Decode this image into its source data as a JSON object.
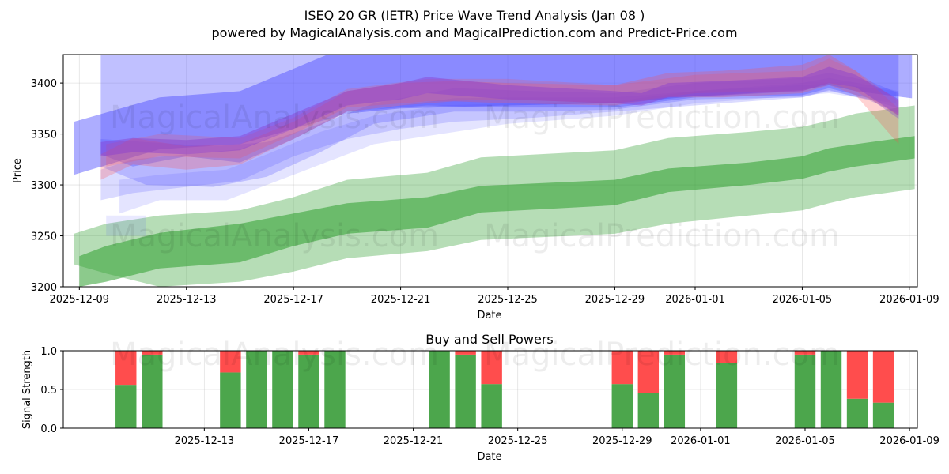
{
  "header": {
    "title": "ISEQ 20 GR (IETR) Price Wave Trend Analysis (Jan 08 )",
    "subtitle": "powered by MagicalAnalysis.com and MagicalPrediction.com and Predict-Price.com"
  },
  "watermarks": [
    "MagicalAnalysis.com",
    "MagicalPrediction.com"
  ],
  "colors": {
    "green": "#2e9e2e",
    "blue": "#4a4aff",
    "red": "#ff4d4d",
    "buy": "#4ca64c",
    "sell": "#ff4d4d",
    "purple": "#8a3fd0"
  },
  "chart_data": [
    {
      "type": "area",
      "title": "",
      "xlabel": "Date",
      "ylabel": "Price",
      "xlim": [
        -0.6,
        31.3
      ],
      "ylim": [
        3200,
        3428
      ],
      "x_origin_date": "2025-12-09",
      "x_ticks": [
        {
          "x": 0,
          "label": "2025-12-09"
        },
        {
          "x": 4,
          "label": "2025-12-13"
        },
        {
          "x": 8,
          "label": "2025-12-17"
        },
        {
          "x": 12,
          "label": "2025-12-21"
        },
        {
          "x": 16,
          "label": "2025-12-25"
        },
        {
          "x": 20,
          "label": "2025-12-29"
        },
        {
          "x": 23,
          "label": "2026-01-01"
        },
        {
          "x": 27,
          "label": "2026-01-05"
        },
        {
          "x": 31,
          "label": "2026-01-09"
        }
      ],
      "y_ticks": [
        3200,
        3250,
        3300,
        3350,
        3400
      ],
      "grid": true,
      "green_bands": [
        {
          "opacity": 0.35,
          "x": [
            -0.2,
            1,
            3,
            6,
            8,
            10,
            13,
            15,
            20,
            22,
            25,
            27,
            28,
            29,
            31.2
          ],
          "lower": [
            3222,
            3213,
            3200,
            3205,
            3215,
            3228,
            3235,
            3246,
            3252,
            3262,
            3270,
            3275,
            3282,
            3288,
            3296
          ],
          "upper": [
            3252,
            3262,
            3270,
            3275,
            3288,
            3305,
            3312,
            3327,
            3334,
            3346,
            3352,
            3357,
            3363,
            3370,
            3378
          ]
        },
        {
          "opacity": 0.55,
          "x": [
            0,
            1,
            3,
            6,
            8,
            10,
            13,
            15,
            20,
            22,
            25,
            27,
            28,
            29,
            31.2
          ],
          "lower": [
            3200,
            3205,
            3218,
            3224,
            3240,
            3252,
            3258,
            3273,
            3280,
            3293,
            3300,
            3306,
            3313,
            3318,
            3326
          ],
          "upper": [
            3230,
            3240,
            3253,
            3262,
            3272,
            3282,
            3288,
            3299,
            3305,
            3316,
            3322,
            3328,
            3336,
            3340,
            3348
          ]
        }
      ],
      "blue_bands": [
        {
          "opacity": 0.45,
          "x": [
            -0.2,
            3,
            6,
            10,
            12,
            16,
            20,
            23,
            27,
            28,
            29,
            31.1
          ],
          "lower": [
            3310,
            3335,
            3340,
            3370,
            3375,
            3378,
            3380,
            3387,
            3393,
            3398,
            3392,
            3385
          ],
          "upper": [
            3362,
            3386,
            3392,
            3436,
            3440,
            3440,
            3438,
            3440,
            3445,
            3450,
            3445,
            3430
          ]
        },
        {
          "opacity": 0.35,
          "x": [
            0.8,
            2,
            4,
            6,
            8,
            10,
            13,
            16,
            20,
            23,
            27,
            28,
            29.5,
            30.6
          ],
          "lower": [
            3330,
            3318,
            3328,
            3322,
            3345,
            3372,
            3378,
            3376,
            3376,
            3386,
            3388,
            3395,
            3385,
            3365
          ]
        },
        {
          "opacity": 0.25,
          "x": [
            0.8,
            2.5,
            5,
            7,
            9,
            11,
            14,
            17,
            20,
            23,
            27,
            28,
            29.5,
            30.6
          ],
          "lower": [
            3318,
            3300,
            3298,
            3308,
            3332,
            3360,
            3372,
            3372,
            3374,
            3384,
            3386,
            3393,
            3383,
            3370
          ],
          "upper": [
            3345,
            3342,
            3338,
            3342,
            3360,
            3380,
            3395,
            3392,
            3390,
            3400,
            3405,
            3410,
            3402,
            3390
          ]
        },
        {
          "opacity": 0.2,
          "x": [
            0.8,
            2,
            4,
            6,
            8,
            10,
            12,
            14,
            17,
            20,
            24,
            27,
            28,
            29.5,
            30.6
          ],
          "lower": [
            3285,
            3292,
            3298,
            3304,
            3328,
            3345,
            3355,
            3362,
            3366,
            3372,
            3380,
            3386,
            3392,
            3384,
            3375
          ],
          "upper": [
            3315,
            3325,
            3330,
            3335,
            3355,
            3370,
            3378,
            3385,
            3386,
            3386,
            3394,
            3400,
            3405,
            3398,
            3392
          ]
        },
        {
          "opacity": 0.15,
          "x": [
            1.5,
            3,
            5.5,
            7,
            9,
            11,
            13.5,
            16,
            20,
            23,
            27,
            28,
            30.5
          ],
          "lower": [
            3272,
            3285,
            3285,
            3300,
            3320,
            3340,
            3350,
            3360,
            3368,
            3380,
            3388,
            3390,
            3380
          ],
          "upper": [
            3305,
            3310,
            3315,
            3330,
            3352,
            3368,
            3378,
            3380,
            3382,
            3392,
            3398,
            3400,
            3392
          ]
        },
        {
          "opacity": 0.12,
          "x": [
            1,
            2.5
          ],
          "lower": [
            3250,
            3250
          ],
          "upper": [
            3270,
            3270
          ]
        }
      ],
      "red_bands": [
        {
          "opacity": 0.25,
          "x": [
            0.8,
            2,
            4,
            6,
            8,
            10,
            12,
            14,
            16,
            20,
            22,
            24,
            27,
            28,
            29,
            30.6
          ],
          "lower": [
            3305,
            3320,
            3315,
            3320,
            3345,
            3372,
            3378,
            3382,
            3380,
            3378,
            3386,
            3386,
            3390,
            3398,
            3388,
            3340
          ],
          "upper": [
            3330,
            3346,
            3338,
            3340,
            3362,
            3392,
            3400,
            3402,
            3400,
            3398,
            3410,
            3412,
            3418,
            3428,
            3412,
            3375
          ]
        },
        {
          "opacity": 0.2,
          "x": [
            1,
            3,
            6,
            8,
            10,
            13,
            16,
            20,
            23,
            27,
            28,
            29,
            30.6
          ],
          "lower": [
            3318,
            3328,
            3326,
            3350,
            3376,
            3382,
            3384,
            3380,
            3390,
            3392,
            3400,
            3392,
            3368
          ],
          "upper": [
            3340,
            3350,
            3346,
            3366,
            3394,
            3404,
            3404,
            3398,
            3408,
            3412,
            3424,
            3412,
            3382
          ]
        }
      ],
      "purple_band": {
        "x": [
          0.8,
          2,
          4,
          6,
          8,
          10,
          12,
          13,
          16,
          20,
          21,
          22,
          24,
          27,
          28,
          29,
          30.6
        ],
        "lower": [
          3328,
          3332,
          3330,
          3334,
          3355,
          3378,
          3384,
          3390,
          3384,
          3380,
          3378,
          3386,
          3388,
          3392,
          3400,
          3396,
          3368
        ],
        "upper": [
          3342,
          3346,
          3344,
          3348,
          3370,
          3392,
          3400,
          3406,
          3398,
          3392,
          3390,
          3400,
          3402,
          3406,
          3416,
          3408,
          3384
        ]
      }
    },
    {
      "type": "bar",
      "title": "Buy and Sell Powers",
      "xlabel": "Date",
      "ylabel": "Signal Strength",
      "xlim": [
        -1.4,
        31.3
      ],
      "ylim": [
        0,
        1
      ],
      "y_ticks": [
        0.0,
        0.5,
        1.0
      ],
      "x_ticks": [
        {
          "x": 4,
          "label": "2025-12-13"
        },
        {
          "x": 8,
          "label": "2025-12-17"
        },
        {
          "x": 12,
          "label": "2025-12-21"
        },
        {
          "x": 16,
          "label": "2025-12-25"
        },
        {
          "x": 20,
          "label": "2025-12-29"
        },
        {
          "x": 23,
          "label": "2026-01-01"
        },
        {
          "x": 27,
          "label": "2026-01-05"
        },
        {
          "x": 31,
          "label": "2026-01-09"
        }
      ],
      "series": [
        {
          "name": "Buy"
        },
        {
          "name": "Sell"
        }
      ],
      "x": [
        1,
        2,
        5,
        6,
        7,
        8,
        9,
        13,
        14,
        15,
        20,
        21,
        22,
        24,
        27,
        28,
        29,
        30
      ],
      "buy": [
        0.56,
        0.95,
        0.72,
        1.0,
        1.0,
        0.95,
        1.0,
        1.0,
        0.95,
        0.57,
        0.57,
        0.45,
        0.95,
        0.84,
        0.95,
        1.0,
        0.38,
        0.33
      ],
      "sell": [
        0.44,
        0.05,
        0.28,
        0.0,
        0.0,
        0.05,
        0.0,
        0.0,
        0.05,
        0.43,
        0.43,
        0.55,
        0.05,
        0.16,
        0.05,
        0.0,
        0.62,
        0.67
      ]
    }
  ]
}
